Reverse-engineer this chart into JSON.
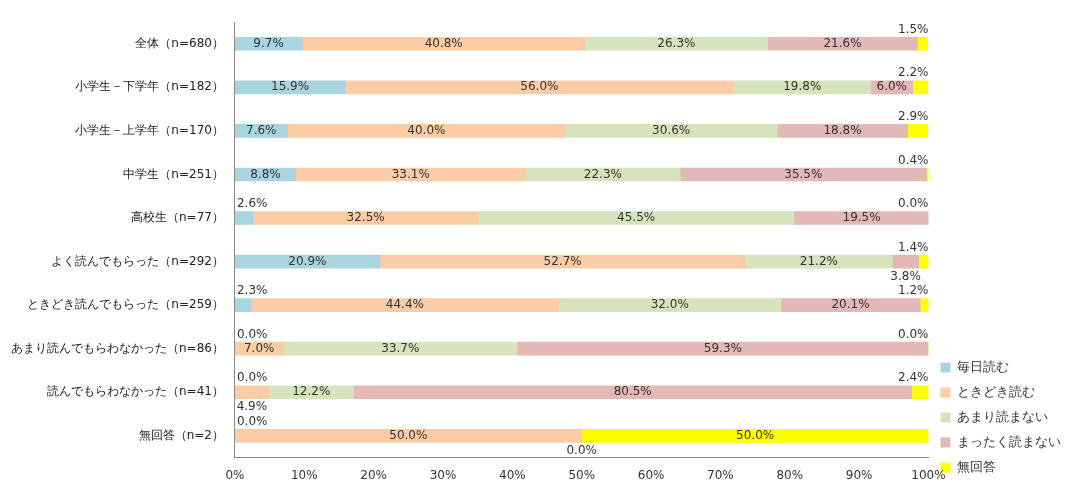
{
  "chart_data": {
    "type": "bar",
    "orientation": "horizontal",
    "stacked": true,
    "categories": [
      "全体（n=680）",
      "小学生－下学年（n=182）",
      "小学生－上学年（n=170）",
      "中学生（n=251）",
      "高校生（n=77）",
      "よく読んでもらった（n=292）",
      "ときどき読んでもらった（n=259）",
      "あまり読んでもらわなかった（n=86）",
      "読んでもらわなかった（n=41）",
      "無回答（n=2）"
    ],
    "series": [
      {
        "name": "毎日読む",
        "color": "#a9d5e0",
        "values": [
          9.7,
          15.9,
          7.6,
          8.8,
          2.6,
          20.9,
          2.3,
          0.0,
          0.0,
          0.0
        ],
        "value_labels": [
          "9.7%",
          "15.9%",
          "7.6%",
          "8.8%",
          "2.6%",
          "20.9%",
          "2.3%",
          "0.0%",
          "0.0%",
          "0.0%"
        ]
      },
      {
        "name": "ときどき読む",
        "color": "#fbcca6",
        "values": [
          40.8,
          56.0,
          40.0,
          33.1,
          32.5,
          52.7,
          44.4,
          7.0,
          4.9,
          50.0
        ],
        "value_labels": [
          "40.8%",
          "56.0%",
          "40.0%",
          "33.1%",
          "32.5%",
          "52.7%",
          "44.4%",
          "7.0%",
          "4.9%",
          "50.0%"
        ]
      },
      {
        "name": "あまり読まない",
        "color": "#d6e3bc",
        "values": [
          26.3,
          19.8,
          30.6,
          22.3,
          45.5,
          21.2,
          32.0,
          33.7,
          12.2,
          0.0
        ],
        "value_labels": [
          "26.3%",
          "19.8%",
          "30.6%",
          "22.3%",
          "45.5%",
          "21.2%",
          "32.0%",
          "33.7%",
          "12.2%",
          "0.0%"
        ]
      },
      {
        "name": "まったく読まない",
        "color": "#e4b8b7",
        "values": [
          21.6,
          6.0,
          18.8,
          35.5,
          19.5,
          3.8,
          20.1,
          59.3,
          80.5,
          0.0
        ],
        "value_labels": [
          "21.6%",
          "6.0%",
          "18.8%",
          "35.5%",
          "19.5%",
          "3.8%",
          "20.1%",
          "59.3%",
          "80.5%",
          null
        ]
      },
      {
        "name": "無回答",
        "color": "#ffff00",
        "values": [
          1.5,
          2.2,
          2.9,
          0.4,
          0.0,
          1.4,
          1.2,
          0.0,
          2.4,
          50.0
        ],
        "value_labels": [
          "1.5%",
          "2.2%",
          "2.9%",
          "0.4%",
          "0.0%",
          "1.4%",
          "1.2%",
          "0.0%",
          "2.4%",
          "50.0%"
        ]
      }
    ],
    "xlim": [
      0,
      100
    ],
    "xticks": [
      {
        "value": 0,
        "label": "0%"
      },
      {
        "value": 10,
        "label": "10%"
      },
      {
        "value": 20,
        "label": "20%"
      },
      {
        "value": 30,
        "label": "30%"
      },
      {
        "value": 40,
        "label": "40%"
      },
      {
        "value": 50,
        "label": "50%"
      },
      {
        "value": 60,
        "label": "60%"
      },
      {
        "value": 70,
        "label": "70%"
      },
      {
        "value": 80,
        "label": "80%"
      },
      {
        "value": 90,
        "label": "90%"
      },
      {
        "value": 100,
        "label": "100%"
      }
    ],
    "legend": "bottom right",
    "grid": false
  }
}
